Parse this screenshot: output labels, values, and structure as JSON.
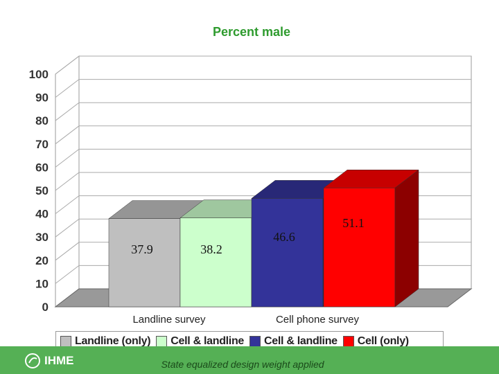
{
  "chart_data": {
    "type": "bar",
    "title": "Percent male",
    "yticks": [
      "0",
      "10",
      "20",
      "30",
      "40",
      "50",
      "60",
      "70",
      "80",
      "90",
      "100"
    ],
    "ylim": [
      0,
      100
    ],
    "categories": [
      "Landline survey",
      "Cell phone survey"
    ],
    "series": [
      {
        "name": "Landline (only)",
        "color": "#bfbfbf",
        "values": [
          37.9,
          null
        ],
        "label": "37.9"
      },
      {
        "name": "Cell & landline",
        "color": "#ccffcc",
        "values": [
          38.2,
          null
        ],
        "label": "38.2"
      },
      {
        "name": "Cell & landline",
        "color": "#333399",
        "values": [
          null,
          46.6
        ],
        "label": "46.6"
      },
      {
        "name": "Cell (only)",
        "color": "#ff0000",
        "values": [
          null,
          51.1
        ],
        "label": "51.1"
      }
    ],
    "grid": true,
    "legend_position": "bottom"
  },
  "footer": {
    "logo_text": "IHME",
    "note": "State equalized design weight applied",
    "bar_color": "#55b055"
  }
}
